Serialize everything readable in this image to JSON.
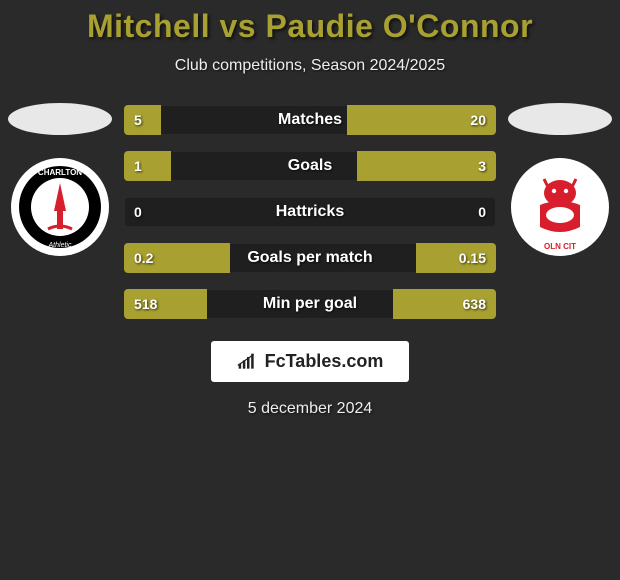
{
  "title": "Mitchell vs Paudie O'Connor",
  "subtitle": "Club competitions, Season 2024/2025",
  "date": "5 december 2024",
  "brand": "FcTables.com",
  "colors": {
    "bar_fill": "#a8a030",
    "bar_track": "rgba(0,0,0,0.25)",
    "title_color": "#a8a030",
    "bg": "#2a2a2a",
    "text": "#ffffff"
  },
  "left_club": {
    "name": "Charlton Athletic",
    "logo_bg": "#ffffff",
    "logo_inner": "#000000",
    "logo_accent": "#d81e2c"
  },
  "right_club": {
    "name": "Lincoln City",
    "logo_bg": "#ffffff",
    "logo_inner": "#d81e2c"
  },
  "stats": [
    {
      "label": "Matches",
      "left_text": "5",
      "right_text": "20",
      "left_pct": 10,
      "right_pct": 40
    },
    {
      "label": "Goals",
      "left_text": "1",
      "right_text": "3",
      "left_pct": 12.5,
      "right_pct": 37.5
    },
    {
      "label": "Hattricks",
      "left_text": "0",
      "right_text": "0",
      "left_pct": 0,
      "right_pct": 0
    },
    {
      "label": "Goals per match",
      "left_text": "0.2",
      "right_text": "0.15",
      "left_pct": 28.5,
      "right_pct": 21.5
    },
    {
      "label": "Min per goal",
      "left_text": "518",
      "right_text": "638",
      "left_pct": 22.4,
      "right_pct": 27.6
    }
  ]
}
